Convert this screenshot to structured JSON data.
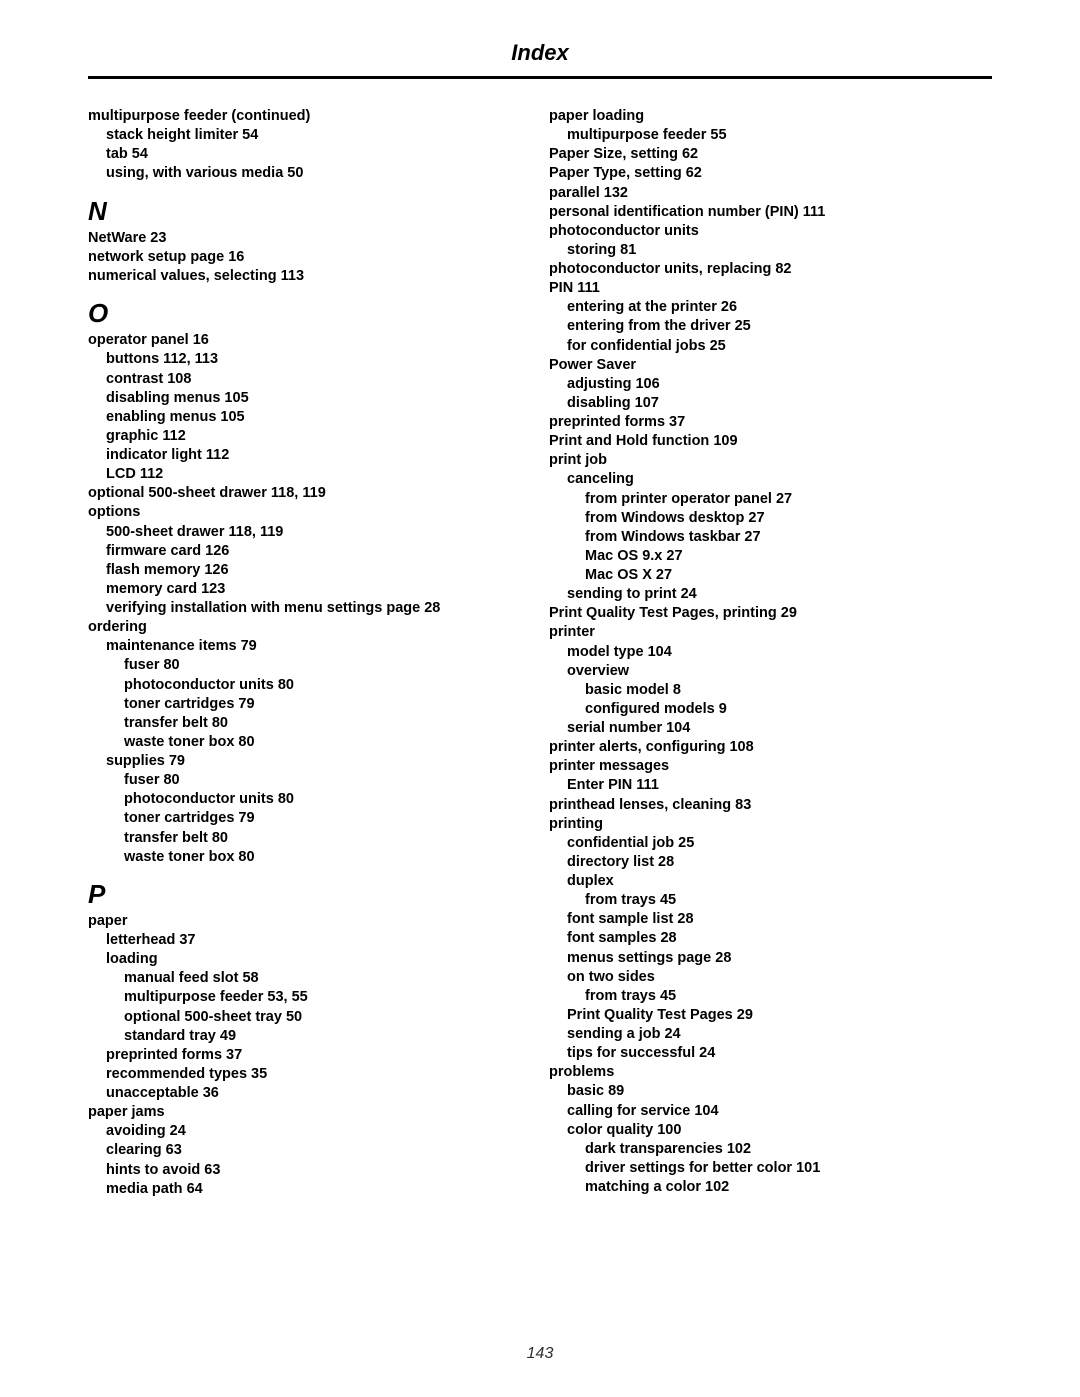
{
  "header": {
    "title": "Index"
  },
  "page_number": "143",
  "left": [
    {
      "t": "multipurpose feeder (continued)",
      "i": 0
    },
    {
      "t": "stack height limiter  54",
      "i": 1
    },
    {
      "t": "tab  54",
      "i": 1
    },
    {
      "t": "using, with various media  50",
      "i": 1
    },
    {
      "letter": "N"
    },
    {
      "t": "NetWare  23",
      "i": 0
    },
    {
      "t": "network setup page  16",
      "i": 0
    },
    {
      "t": "numerical values, selecting  113",
      "i": 0
    },
    {
      "letter": "O"
    },
    {
      "t": "operator panel  16",
      "i": 0
    },
    {
      "t": "buttons  112, 113",
      "i": 1
    },
    {
      "t": "contrast  108",
      "i": 1
    },
    {
      "t": "disabling menus  105",
      "i": 1
    },
    {
      "t": "enabling menus  105",
      "i": 1
    },
    {
      "t": "graphic  112",
      "i": 1
    },
    {
      "t": "indicator light  112",
      "i": 1
    },
    {
      "t": "LCD  112",
      "i": 1
    },
    {
      "t": "optional 500-sheet drawer  118, 119",
      "i": 0
    },
    {
      "t": "options",
      "i": 0
    },
    {
      "t": "500-sheet drawer  118, 119",
      "i": 1
    },
    {
      "t": "firmware card  126",
      "i": 1
    },
    {
      "t": "flash memory  126",
      "i": 1
    },
    {
      "t": "memory card  123",
      "i": 1
    },
    {
      "t": "verifying installation with menu settings page  28",
      "i": 1
    },
    {
      "t": "ordering",
      "i": 0
    },
    {
      "t": "maintenance items  79",
      "i": 1
    },
    {
      "t": "fuser  80",
      "i": 2
    },
    {
      "t": "photoconductor units  80",
      "i": 2
    },
    {
      "t": "toner cartridges  79",
      "i": 2
    },
    {
      "t": "transfer belt  80",
      "i": 2
    },
    {
      "t": "waste toner box  80",
      "i": 2
    },
    {
      "t": "supplies  79",
      "i": 1
    },
    {
      "t": "fuser  80",
      "i": 2
    },
    {
      "t": "photoconductor units  80",
      "i": 2
    },
    {
      "t": "toner cartridges  79",
      "i": 2
    },
    {
      "t": "transfer belt  80",
      "i": 2
    },
    {
      "t": "waste toner box  80",
      "i": 2
    },
    {
      "letter": "P"
    },
    {
      "t": "paper",
      "i": 0
    },
    {
      "t": "letterhead  37",
      "i": 1
    },
    {
      "t": "loading",
      "i": 1
    },
    {
      "t": "manual feed slot  58",
      "i": 2
    },
    {
      "t": "multipurpose feeder  53, 55",
      "i": 2
    },
    {
      "t": "optional 500-sheet tray  50",
      "i": 2
    },
    {
      "t": "standard tray  49",
      "i": 2
    },
    {
      "t": "preprinted forms  37",
      "i": 1
    },
    {
      "t": "recommended types  35",
      "i": 1
    },
    {
      "t": "unacceptable  36",
      "i": 1
    },
    {
      "t": "paper jams",
      "i": 0
    },
    {
      "t": "avoiding  24",
      "i": 1
    },
    {
      "t": "clearing  63",
      "i": 1
    },
    {
      "t": "hints to avoid  63",
      "i": 1
    },
    {
      "t": "media path  64",
      "i": 1
    }
  ],
  "right": [
    {
      "t": "paper loading",
      "i": 0
    },
    {
      "t": "multipurpose feeder  55",
      "i": 1
    },
    {
      "t": "Paper Size, setting  62",
      "i": 0
    },
    {
      "t": "Paper Type, setting  62",
      "i": 0
    },
    {
      "t": "parallel  132",
      "i": 0
    },
    {
      "t": "personal identification number (PIN)  111",
      "i": 0
    },
    {
      "t": "photoconductor units",
      "i": 0
    },
    {
      "t": "storing  81",
      "i": 1
    },
    {
      "t": "photoconductor units, replacing  82",
      "i": 0
    },
    {
      "t": "PIN  111",
      "i": 0
    },
    {
      "t": "entering at the printer  26",
      "i": 1
    },
    {
      "t": "entering from the driver  25",
      "i": 1
    },
    {
      "t": "for confidential jobs  25",
      "i": 1
    },
    {
      "t": "Power Saver",
      "i": 0
    },
    {
      "t": "adjusting  106",
      "i": 1
    },
    {
      "t": "disabling  107",
      "i": 1
    },
    {
      "t": "preprinted forms  37",
      "i": 0
    },
    {
      "t": "Print and Hold function  109",
      "i": 0
    },
    {
      "t": "print job",
      "i": 0
    },
    {
      "t": "canceling",
      "i": 1
    },
    {
      "t": "from printer operator panel  27",
      "i": 2
    },
    {
      "t": "from Windows desktop  27",
      "i": 2
    },
    {
      "t": "from Windows taskbar  27",
      "i": 2
    },
    {
      "t": "Mac OS 9.x  27",
      "i": 2
    },
    {
      "t": "Mac OS X  27",
      "i": 2
    },
    {
      "t": "sending to print  24",
      "i": 1
    },
    {
      "t": "Print Quality Test Pages, printing  29",
      "i": 0
    },
    {
      "t": "printer",
      "i": 0
    },
    {
      "t": "model type  104",
      "i": 1
    },
    {
      "t": "overview",
      "i": 1
    },
    {
      "t": "basic model  8",
      "i": 2
    },
    {
      "t": "configured models  9",
      "i": 2
    },
    {
      "t": "serial number  104",
      "i": 1
    },
    {
      "t": "printer alerts, configuring  108",
      "i": 0
    },
    {
      "t": "printer messages",
      "i": 0
    },
    {
      "t": "Enter PIN  111",
      "i": 1
    },
    {
      "t": "printhead lenses, cleaning  83",
      "i": 0
    },
    {
      "t": "printing",
      "i": 0
    },
    {
      "t": "confidential job  25",
      "i": 1
    },
    {
      "t": "directory list  28",
      "i": 1
    },
    {
      "t": "duplex",
      "i": 1
    },
    {
      "t": "from trays  45",
      "i": 2
    },
    {
      "t": "font sample list  28",
      "i": 1
    },
    {
      "t": "font samples  28",
      "i": 1
    },
    {
      "t": "menus settings page  28",
      "i": 1
    },
    {
      "t": "on two sides",
      "i": 1
    },
    {
      "t": "from trays  45",
      "i": 2
    },
    {
      "t": "Print Quality Test Pages  29",
      "i": 1
    },
    {
      "t": "sending a job  24",
      "i": 1
    },
    {
      "t": "tips for successful  24",
      "i": 1
    },
    {
      "t": "problems",
      "i": 0
    },
    {
      "t": "basic  89",
      "i": 1
    },
    {
      "t": "calling for service  104",
      "i": 1
    },
    {
      "t": "color quality  100",
      "i": 1
    },
    {
      "t": "dark transparencies  102",
      "i": 2
    },
    {
      "t": "driver settings for better color  101",
      "i": 2
    },
    {
      "t": "matching a color  102",
      "i": 2
    }
  ]
}
